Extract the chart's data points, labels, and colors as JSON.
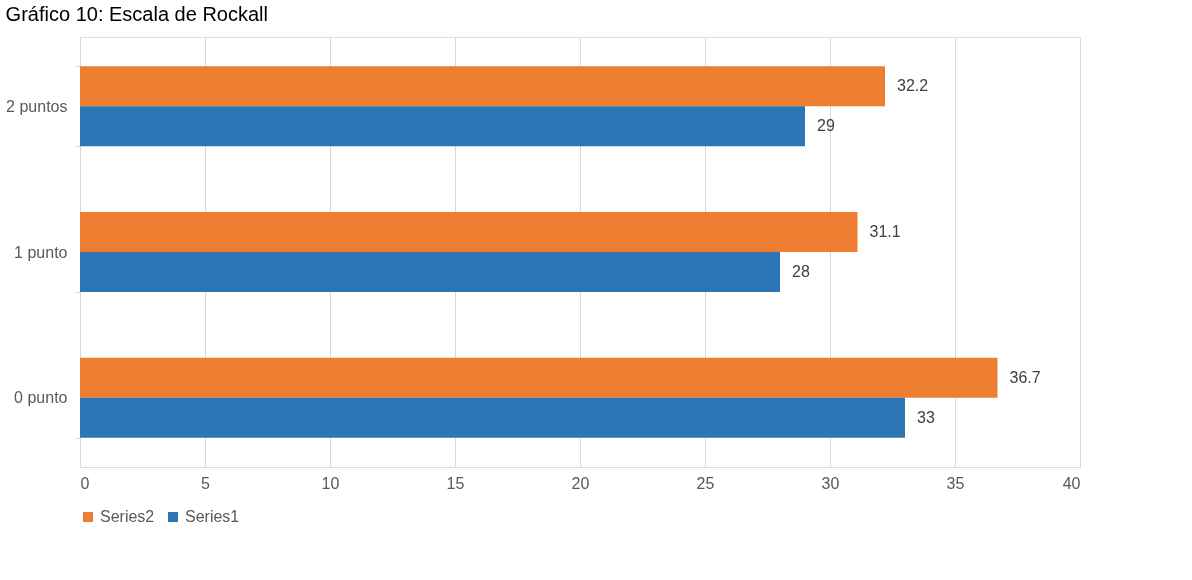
{
  "chart_data": {
    "type": "bar",
    "orientation": "horizontal",
    "title": "Gráfico 10: Escala de Rockall",
    "categories": [
      "2 puntos",
      "1 punto",
      "0 punto"
    ],
    "series": [
      {
        "name": "Series2",
        "color": "#ed7d31",
        "values": [
          32.2,
          31.1,
          36.7
        ]
      },
      {
        "name": "Series1",
        "color": "#2e75b6",
        "values": [
          29,
          28,
          33
        ]
      }
    ],
    "xlim": [
      0,
      40
    ],
    "xticks": [
      0,
      5,
      10,
      15,
      20,
      25,
      30,
      35,
      40
    ],
    "grid": "x",
    "legend": "bottom",
    "data_labels": true
  }
}
